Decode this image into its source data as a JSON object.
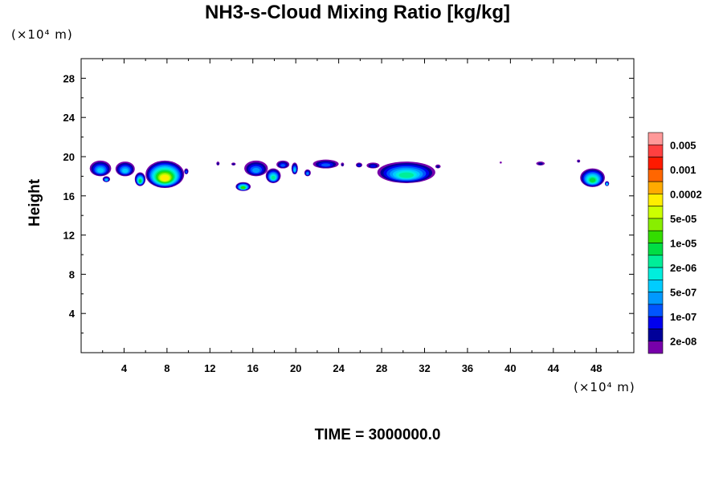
{
  "chart_data": {
    "type": "heatmap",
    "title": "NH3-s-Cloud Mixing Ratio [kg/kg]",
    "ylabel": "Height",
    "x_unit_label": "(×10⁴ m)",
    "y_unit_label": "(×10⁴ m)",
    "footer": "TIME = 3000000.0",
    "xlim": [
      0,
      51.5
    ],
    "ylim": [
      0,
      30
    ],
    "x_ticks": [
      4,
      8,
      12,
      16,
      20,
      24,
      28,
      32,
      36,
      40,
      44,
      48
    ],
    "y_ticks": [
      4,
      8,
      12,
      16,
      20,
      24,
      28
    ],
    "colorbar": {
      "labels": [
        "0.005",
        "0.001",
        "0.0002",
        "5e-05",
        "1e-05",
        "2e-06",
        "5e-07",
        "1e-07",
        "2e-08"
      ],
      "colors_top_to_bottom": [
        "#ff9999",
        "#ff4040",
        "#ff1a00",
        "#ff6600",
        "#ffaa00",
        "#ffee00",
        "#ccff00",
        "#88ee00",
        "#33dd00",
        "#00dd44",
        "#00ee99",
        "#00eedd",
        "#00ccff",
        "#0099ff",
        "#0055ff",
        "#0000ee",
        "#000099",
        "#7700aa"
      ]
    },
    "clouds": [
      {
        "x": [
          0.8,
          2.8
        ],
        "y": [
          18.0,
          19.6
        ],
        "max_level": 12
      },
      {
        "x": [
          2.0,
          2.7
        ],
        "y": [
          17.4,
          18.0
        ],
        "max_level": 12
      },
      {
        "x": [
          3.2,
          5.0
        ],
        "y": [
          18.0,
          19.5
        ],
        "max_level": 12
      },
      {
        "x": [
          5.0,
          6.0
        ],
        "y": [
          17.0,
          18.4
        ],
        "max_level": 9
      },
      {
        "x": [
          6.0,
          9.6
        ],
        "y": [
          16.8,
          19.6
        ],
        "max_level": 5
      },
      {
        "x": [
          9.6,
          10.0
        ],
        "y": [
          18.2,
          18.8
        ],
        "max_level": 14
      },
      {
        "x": [
          12.6,
          12.9
        ],
        "y": [
          19.1,
          19.5
        ],
        "max_level": 16
      },
      {
        "x": [
          14.0,
          14.4
        ],
        "y": [
          19.1,
          19.4
        ],
        "max_level": 16
      },
      {
        "x": [
          14.4,
          15.8
        ],
        "y": [
          16.5,
          17.4
        ],
        "max_level": 8
      },
      {
        "x": [
          15.2,
          17.4
        ],
        "y": [
          18.0,
          19.6
        ],
        "max_level": 13
      },
      {
        "x": [
          17.2,
          18.6
        ],
        "y": [
          17.3,
          18.8
        ],
        "max_level": 10
      },
      {
        "x": [
          18.2,
          19.4
        ],
        "y": [
          18.8,
          19.6
        ],
        "max_level": 14
      },
      {
        "x": [
          19.6,
          20.2
        ],
        "y": [
          18.2,
          19.4
        ],
        "max_level": 12
      },
      {
        "x": [
          20.8,
          21.4
        ],
        "y": [
          18.0,
          18.7
        ],
        "max_level": 13
      },
      {
        "x": [
          21.6,
          24.0
        ],
        "y": [
          18.8,
          19.7
        ],
        "max_level": 14
      },
      {
        "x": [
          24.2,
          24.5
        ],
        "y": [
          19.0,
          19.4
        ],
        "max_level": 16
      },
      {
        "x": [
          25.6,
          26.2
        ],
        "y": [
          18.9,
          19.4
        ],
        "max_level": 15
      },
      {
        "x": [
          26.6,
          27.8
        ],
        "y": [
          18.8,
          19.4
        ],
        "max_level": 15
      },
      {
        "x": [
          27.6,
          33.0
        ],
        "y": [
          17.3,
          19.5
        ],
        "max_level": 10
      },
      {
        "x": [
          33.0,
          33.5
        ],
        "y": [
          18.8,
          19.2
        ],
        "max_level": 16
      },
      {
        "x": [
          39.0,
          39.2
        ],
        "y": [
          19.3,
          19.5
        ],
        "max_level": 17
      },
      {
        "x": [
          42.4,
          43.2
        ],
        "y": [
          19.1,
          19.5
        ],
        "max_level": 16
      },
      {
        "x": [
          46.2,
          46.5
        ],
        "y": [
          19.4,
          19.7
        ],
        "max_level": 16
      },
      {
        "x": [
          46.5,
          48.8
        ],
        "y": [
          16.9,
          18.8
        ],
        "max_level": 9
      },
      {
        "x": [
          48.8,
          49.2
        ],
        "y": [
          17.0,
          17.5
        ],
        "max_level": 11
      }
    ]
  }
}
